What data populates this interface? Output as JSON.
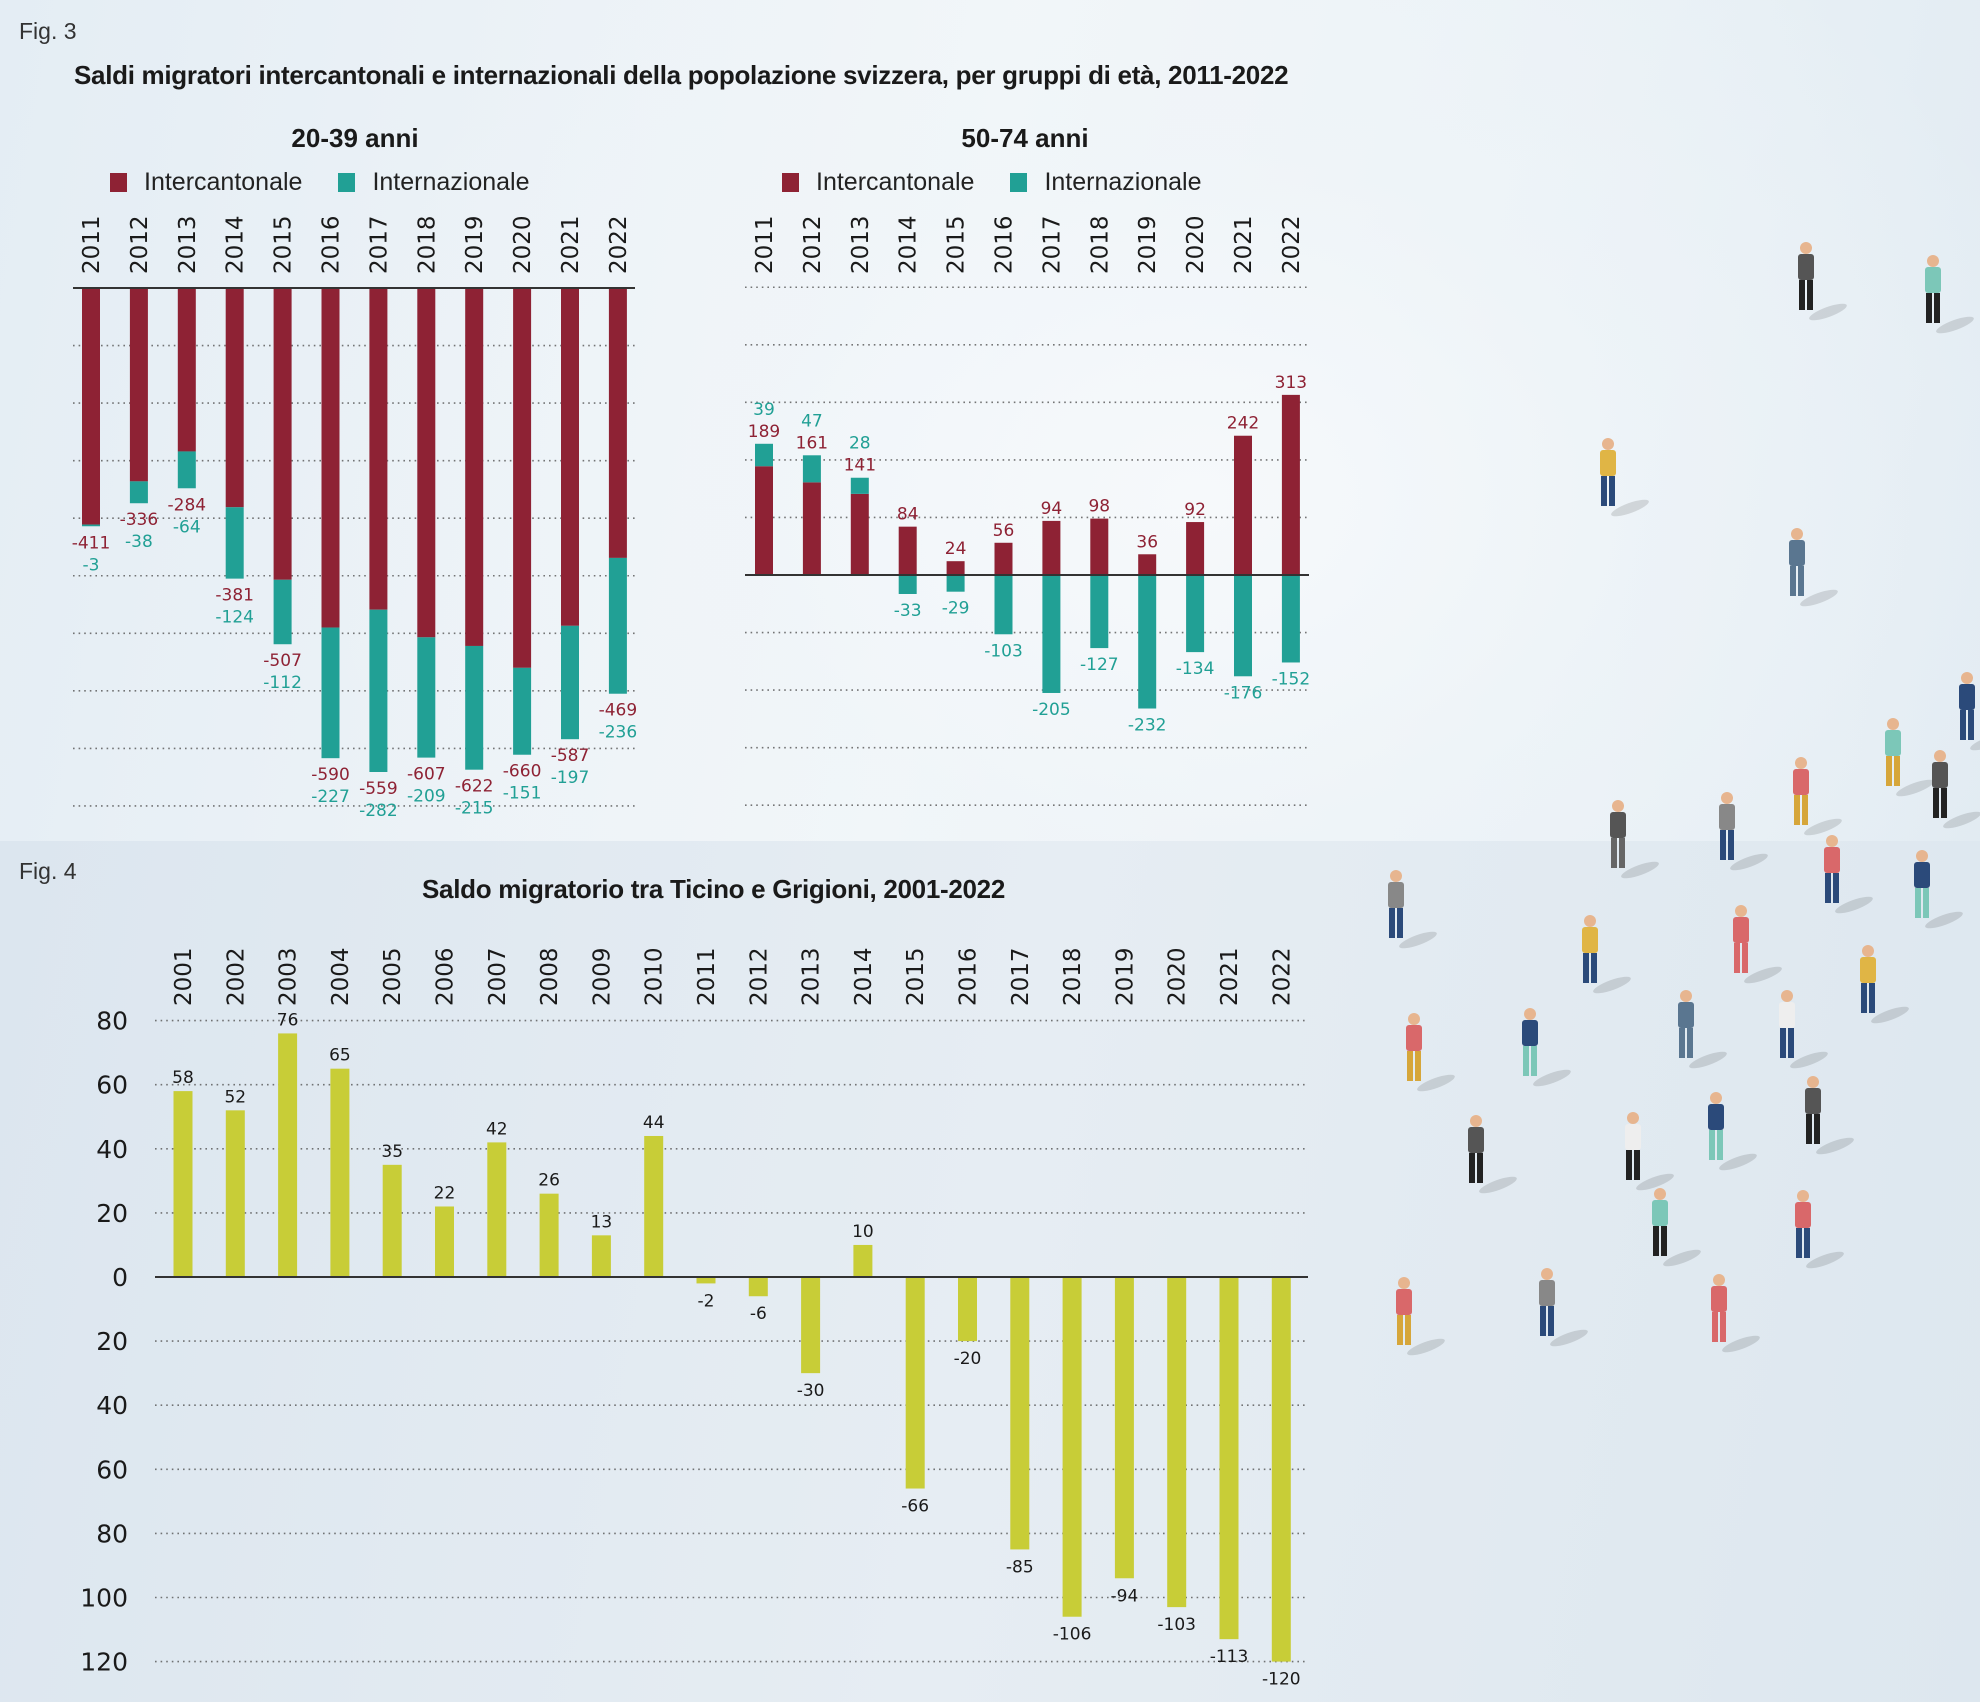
{
  "colors": {
    "intercantonal": "#8E2234",
    "international": "#21A095",
    "ticino_grigioni": "#C8CD37",
    "axis": "#333333",
    "grid": "#555555",
    "text": "#1a1a1a"
  },
  "fig3": {
    "label": "Fig. 3",
    "title": "Saldi migratori intercantonali e internazionali della popolazione svizzera, per gruppi di età, 2011-2022",
    "legend": [
      "Intercantonale",
      "Internazionale"
    ]
  },
  "fig4": {
    "label": "Fig. 4",
    "title": "Saldo migratorio tra Ticino e Grigioni, 2001-2022"
  },
  "chart_data": [
    {
      "type": "bar",
      "stacked": true,
      "title": "20-39 anni",
      "categories": [
        "2011",
        "2012",
        "2013",
        "2014",
        "2015",
        "2016",
        "2017",
        "2018",
        "2019",
        "2020",
        "2021",
        "2022"
      ],
      "series": [
        {
          "name": "Intercantonale",
          "values": [
            -411,
            -336,
            -284,
            -381,
            -507,
            -590,
            -559,
            -607,
            -622,
            -660,
            -587,
            -469
          ]
        },
        {
          "name": "Internazionale",
          "values": [
            -3,
            -38,
            -64,
            -124,
            -112,
            -227,
            -282,
            -209,
            -215,
            -151,
            -197,
            -236
          ]
        }
      ],
      "xlabel": "",
      "ylabel": "",
      "ylim": [
        -900,
        0
      ],
      "grid": true,
      "legend_position": "top",
      "xaxis_position": "top"
    },
    {
      "type": "bar",
      "stacked": true,
      "title": "50-74 anni",
      "categories": [
        "2011",
        "2012",
        "2013",
        "2014",
        "2015",
        "2016",
        "2017",
        "2018",
        "2019",
        "2020",
        "2021",
        "2022"
      ],
      "series": [
        {
          "name": "Intercantonale",
          "values": [
            189,
            161,
            141,
            84,
            24,
            56,
            94,
            98,
            36,
            92,
            242,
            313
          ]
        },
        {
          "name": "Internazionale",
          "values": [
            39,
            47,
            28,
            -33,
            -29,
            -103,
            -205,
            -127,
            -232,
            -134,
            -176,
            -152
          ]
        }
      ],
      "xlabel": "",
      "ylabel": "",
      "ylim": [
        -400,
        500
      ],
      "grid": true,
      "legend_position": "top",
      "xaxis_position": "top"
    },
    {
      "type": "bar",
      "title": "Saldo migratorio tra Ticino e Grigioni, 2001-2022",
      "categories": [
        "2001",
        "2002",
        "2003",
        "2004",
        "2005",
        "2006",
        "2007",
        "2008",
        "2009",
        "2010",
        "2011",
        "2012",
        "2013",
        "2014",
        "2015",
        "2016",
        "2017",
        "2018",
        "2019",
        "2020",
        "2021",
        "2022"
      ],
      "values": [
        58,
        52,
        76,
        65,
        35,
        22,
        42,
        26,
        13,
        44,
        -2,
        -6,
        -30,
        10,
        -66,
        -20,
        -85,
        -106,
        -94,
        -103,
        -113,
        -120
      ],
      "xlabel": "",
      "ylabel": "",
      "ylim": [
        -120,
        80
      ],
      "yticks": [
        80,
        60,
        40,
        20,
        0,
        -20,
        -40,
        -60,
        -80,
        -100,
        -120
      ],
      "ytick_labels": [
        "80",
        "60",
        "40",
        "20",
        "0",
        "20",
        "40",
        "60",
        "80",
        "100",
        "120"
      ],
      "grid": true,
      "xaxis_position": "top"
    }
  ]
}
